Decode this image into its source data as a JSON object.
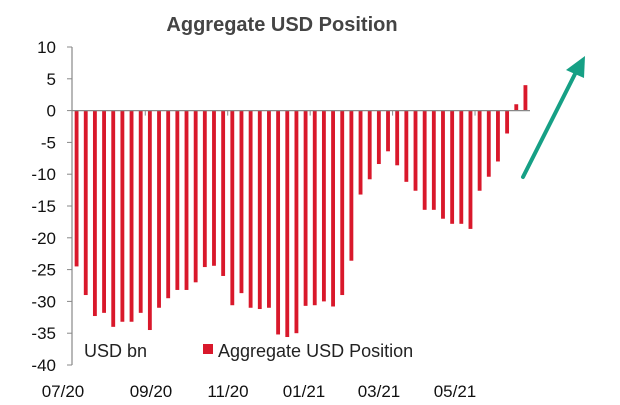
{
  "chart_data": {
    "type": "bar",
    "title": "Aggregate USD Position",
    "unit_label": "USD bn",
    "ylim": [
      -40,
      10
    ],
    "yticks": [
      10,
      5,
      0,
      -5,
      -10,
      -15,
      -20,
      -25,
      -30,
      -35,
      -40
    ],
    "xticks": [
      "07/20",
      "09/20",
      "11/20",
      "01/21",
      "03/21",
      "05/21"
    ],
    "legend": {
      "label": "Aggregate USD Position",
      "placement": "bottom-center"
    },
    "series": [
      {
        "name": "Aggregate USD Position",
        "color": "#d9182b",
        "values": [
          -24.5,
          -29,
          -32.3,
          -31.8,
          -34,
          -33.2,
          -33.2,
          -31.8,
          -34.5,
          -31,
          -29.5,
          -28.2,
          -28.2,
          -27,
          -24.6,
          -24.4,
          -26,
          -30.6,
          -28.7,
          -31,
          -31.2,
          -31,
          -35.2,
          -35.6,
          -35,
          -30.7,
          -30.6,
          -30,
          -30.8,
          -29,
          -23.6,
          -13.2,
          -10.8,
          -8.4,
          -6.4,
          -8.6,
          -11.2,
          -12.6,
          -15.6,
          -15.6,
          -17,
          -17.8,
          -17.8,
          -18.6,
          -12.6,
          -10.4,
          -8,
          -3.6,
          1,
          4
        ]
      }
    ],
    "annotation": {
      "type": "arrow",
      "direction": "up-right",
      "color": "#16a085"
    }
  }
}
